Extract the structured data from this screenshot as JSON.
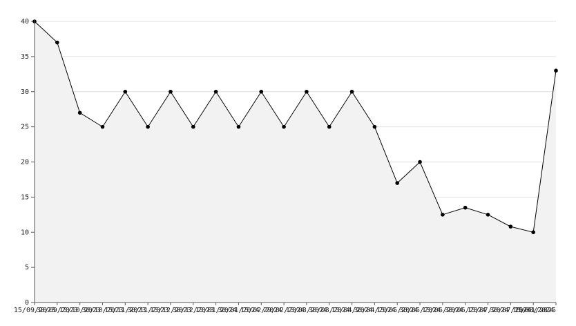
{
  "chart_data": {
    "type": "line",
    "categories": [
      "15/09/2023",
      "30/09/2023",
      "15/10/2023",
      "30/10/2023",
      "15/11/2023",
      "30/11/2023",
      "15/12/2023",
      "30/12/2023",
      "15/01/2024",
      "30/01/2024",
      "15/02/2024",
      "29/02/2024",
      "15/03/2024",
      "30/03/2024",
      "15/04/2024",
      "30/04/2024",
      "15/05/2024",
      "30/05/2024",
      "15/06/2024",
      "30/06/2024",
      "15/07/2024",
      "30/07/2024",
      "15/08/2024",
      "15/01/2025"
    ],
    "series": [
      {
        "color": "#000000",
        "fill": "#f2f2f2",
        "values": [
          40,
          37,
          27,
          25,
          30,
          25,
          30,
          25,
          30,
          25,
          30,
          25,
          30,
          25,
          30,
          25,
          17,
          20,
          12.5,
          13.5,
          12.5,
          10.8,
          10,
          33
        ]
      }
    ],
    "ylim": [
      0,
      40
    ],
    "yticks": [
      0,
      5,
      10,
      15,
      20,
      25,
      30,
      35,
      40
    ],
    "grid": true
  }
}
